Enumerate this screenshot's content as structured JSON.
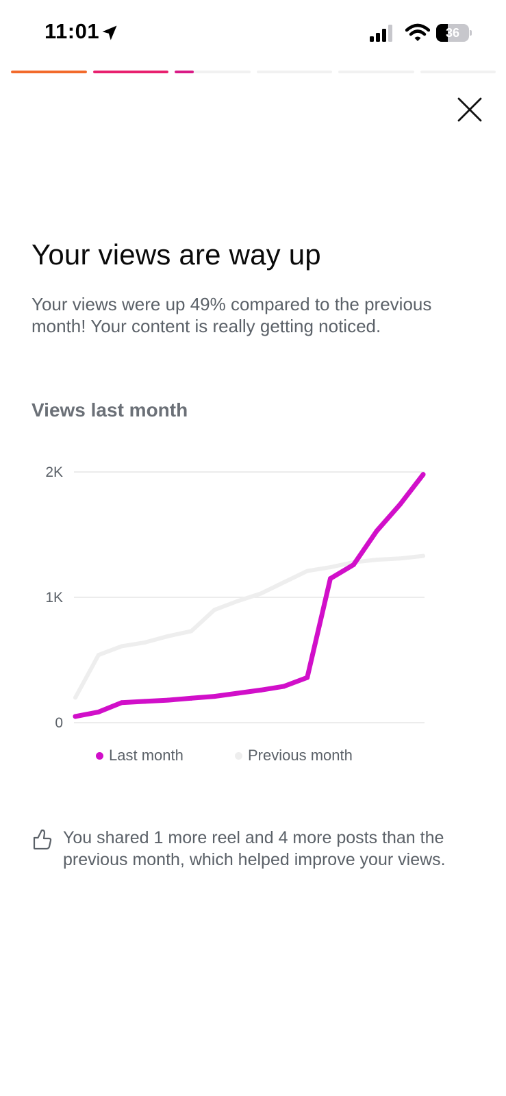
{
  "status_bar": {
    "time": "11:01",
    "battery": "36",
    "battery_level": 0.36
  },
  "story_progress": [
    {
      "fill": 1.0,
      "color": "#f26a2b"
    },
    {
      "fill": 1.0,
      "color": "#e8206e"
    },
    {
      "fill": 0.25,
      "color": "#d91a86"
    },
    {
      "fill": 0.0,
      "color": "#d91a86"
    },
    {
      "fill": 0.0,
      "color": "#d91a86"
    },
    {
      "fill": 0.0,
      "color": "#d91a86"
    }
  ],
  "close": {
    "icon": "close-icon"
  },
  "header": {
    "title": "Your views are way up",
    "subtitle": "Your views were up 49% compared to the previous month! Your content is really getting noticed."
  },
  "chart_title": "Views last month",
  "chart_data": {
    "type": "line",
    "title": "Views last month",
    "xlabel": "",
    "ylabel": "",
    "ylim": [
      0,
      2000
    ],
    "yticks": [
      {
        "value": 0,
        "label": "0"
      },
      {
        "value": 1000,
        "label": "1K"
      },
      {
        "value": 2000,
        "label": "2K"
      }
    ],
    "grid": true,
    "legend": "bottom",
    "series": [
      {
        "name": "Last month",
        "color": "#d10fc9",
        "values": [
          50,
          85,
          160,
          170,
          180,
          195,
          210,
          235,
          260,
          290,
          360,
          1150,
          1260,
          1530,
          1740,
          1980
        ]
      },
      {
        "name": "Previous month",
        "color": "#eeeeee",
        "values": [
          200,
          540,
          610,
          640,
          690,
          730,
          900,
          970,
          1030,
          1120,
          1210,
          1240,
          1280,
          1300,
          1310,
          1330
        ]
      }
    ]
  },
  "legend": [
    {
      "label": "Last month",
      "color": "#d10fc9"
    },
    {
      "label": "Previous month",
      "color": "#eeeeee"
    }
  ],
  "insight": {
    "icon": "thumbs-up-icon",
    "text": "You shared 1 more reel and 4 more posts than the previous month, which helped improve your views."
  }
}
